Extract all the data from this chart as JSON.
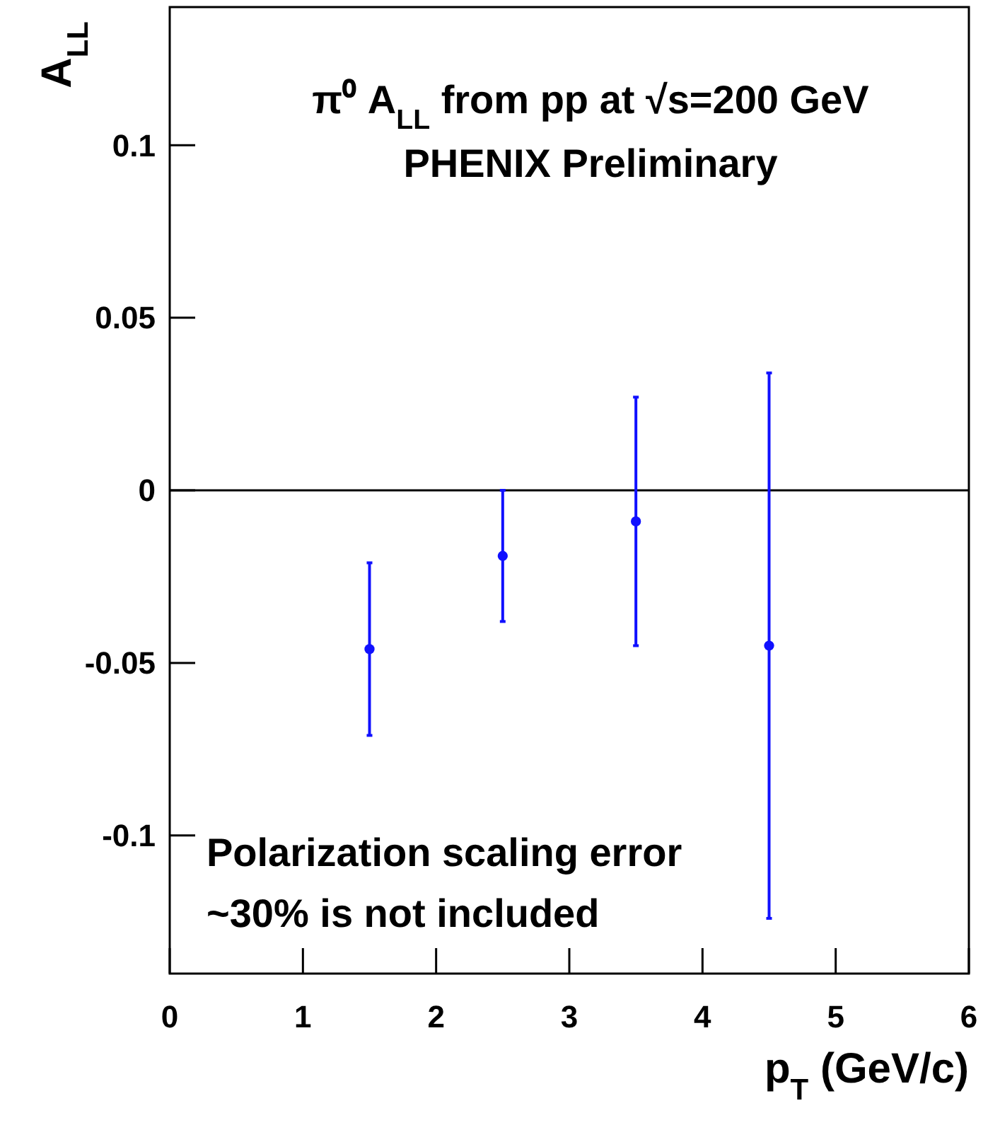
{
  "chart_data": {
    "type": "scatter",
    "title": "π⁰ A$_{LL}$ from pp at √s=200 GeV",
    "subtitle": "PHENIX Preliminary",
    "xlabel": "p$_{T}$ (GeV/c)",
    "ylabel": "A$_{LL}$",
    "x": [
      1.5,
      2.5,
      3.5,
      4.5
    ],
    "series": [
      {
        "color": "#1010ff",
        "values": [
          -0.046,
          -0.019,
          -0.009,
          -0.045
        ],
        "errors": [
          0.025,
          0.019,
          0.036,
          [
            -0.124,
            0.034
          ]
        ]
      }
    ],
    "xlim": [
      0,
      6
    ],
    "xticks": [
      0,
      1,
      2,
      3,
      4,
      5,
      6
    ],
    "ylim": [
      -0.14,
      0.14
    ],
    "yticks": [
      {
        "value": 0.1,
        "label": "0.1"
      },
      {
        "value": 0.05,
        "label": "0.05"
      },
      0,
      {
        "value": -0.05,
        "label": "-0.05"
      },
      {
        "value": -0.1,
        "label": "-0.1"
      }
    ],
    "ref_lines": [
      {
        "axis": "y",
        "value": 0,
        "color": "#000000"
      }
    ],
    "annotations": [
      "Polarization scaling error",
      "~30% is not included"
    ],
    "marker": "circle",
    "grid": false
  }
}
